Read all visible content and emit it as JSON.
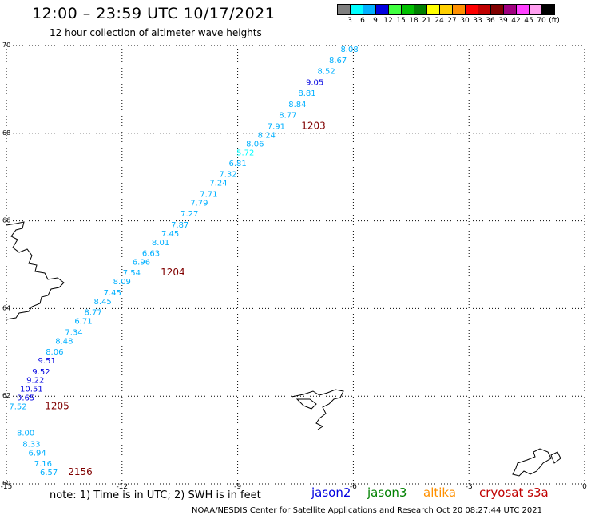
{
  "header": {
    "title": "12:00 – 23:59 UTC 10/17/2021",
    "subtitle": "12 hour collection of altimeter wave heights"
  },
  "colorbar": {
    "colors": [
      "#808080",
      "#00ffff",
      "#00b0ff",
      "#0000e0",
      "#40ff40",
      "#00c000",
      "#008000",
      "#ffff00",
      "#ffd000",
      "#ff9000",
      "#ff0000",
      "#c00000",
      "#800000",
      "#a00080",
      "#ff40ff",
      "#ff9ff0",
      "#000000"
    ],
    "labels": [
      "3",
      "6",
      "9",
      "12",
      "15",
      "18",
      "21",
      "24",
      "27",
      "30",
      "33",
      "36",
      "39",
      "42",
      "45",
      "70",
      "(ft)"
    ]
  },
  "axes": {
    "x_ticks": [
      "-15",
      "-12",
      "-9",
      "-6",
      "-3",
      "0"
    ],
    "y_ticks": [
      "70",
      "68",
      "66",
      "64",
      "62",
      "60"
    ]
  },
  "chart_data": {
    "type": "scatter",
    "x_range": [
      -15,
      0
    ],
    "y_range": [
      60,
      70
    ],
    "grid": true,
    "tracks": [
      {
        "time": "1203",
        "points": [
          {
            "lat": 69.85,
            "lon": -6.1,
            "value": "8.08"
          },
          {
            "lat": 69.6,
            "lon": -6.4,
            "value": "8.67"
          },
          {
            "lat": 69.35,
            "lon": -6.7,
            "value": "8.52"
          },
          {
            "lat": 69.1,
            "lon": -7.0,
            "value": "9.05"
          },
          {
            "lat": 68.85,
            "lon": -7.2,
            "value": "8.81"
          },
          {
            "lat": 68.6,
            "lon": -7.45,
            "value": "8.84"
          },
          {
            "lat": 68.35,
            "lon": -7.7,
            "value": "8.77"
          },
          {
            "lat": 68.1,
            "lon": -8.0,
            "value": "7.91"
          },
          {
            "lat": 67.9,
            "lon": -8.25,
            "value": "8.24"
          },
          {
            "lat": 67.7,
            "lon": -8.55,
            "value": "8.06"
          },
          {
            "lat": 67.5,
            "lon": -8.8,
            "value": "5.72"
          },
          {
            "lat": 67.25,
            "lon": -9.0,
            "value": "6.81"
          },
          {
            "lat": 67.0,
            "lon": -9.25,
            "value": "7.32"
          },
          {
            "lat": 66.8,
            "lon": -9.5,
            "value": "7.24"
          },
          {
            "lat": 66.55,
            "lon": -9.75,
            "value": "7.71"
          },
          {
            "lat": 66.35,
            "lon": -10.0,
            "value": "7.79"
          },
          {
            "lat": 66.1,
            "lon": -10.25,
            "value": "7.27"
          },
          {
            "lat": 65.85,
            "lon": -10.5,
            "value": "7.87"
          },
          {
            "lat": 65.65,
            "lon": -10.75,
            "value": "7.45"
          }
        ]
      },
      {
        "time": "1204",
        "points": [
          {
            "lat": 65.45,
            "lon": -11.0,
            "value": "8.01"
          },
          {
            "lat": 65.2,
            "lon": -11.25,
            "value": "6.63"
          },
          {
            "lat": 65.0,
            "lon": -11.5,
            "value": "6.96"
          },
          {
            "lat": 64.75,
            "lon": -11.75,
            "value": "7.54"
          },
          {
            "lat": 64.55,
            "lon": -12.0,
            "value": "8.09"
          },
          {
            "lat": 64.3,
            "lon": -12.25,
            "value": "7.45"
          },
          {
            "lat": 64.1,
            "lon": -12.5,
            "value": "8.45"
          },
          {
            "lat": 63.85,
            "lon": -12.75,
            "value": "8.77"
          },
          {
            "lat": 63.65,
            "lon": -13.0,
            "value": "6.71"
          },
          {
            "lat": 63.4,
            "lon": -13.25,
            "value": "7.34"
          },
          {
            "lat": 63.2,
            "lon": -13.5,
            "value": "8.48"
          },
          {
            "lat": 62.95,
            "lon": -13.75,
            "value": "8.06"
          }
        ]
      },
      {
        "time": "1205",
        "points": [
          {
            "lat": 62.75,
            "lon": -13.95,
            "value": "9.51"
          },
          {
            "lat": 62.5,
            "lon": -14.1,
            "value": "9.52"
          },
          {
            "lat": 62.3,
            "lon": -14.25,
            "value": "9.22"
          },
          {
            "lat": 62.1,
            "lon": -14.35,
            "value": "10.51"
          },
          {
            "lat": 61.9,
            "lon": -14.5,
            "value": "9.65"
          },
          {
            "lat": 61.7,
            "lon": -14.7,
            "value": "7.52"
          }
        ]
      },
      {
        "time": "2156",
        "points": [
          {
            "lat": 61.1,
            "lon": -14.5,
            "value": "8.00"
          },
          {
            "lat": 60.85,
            "lon": -14.35,
            "value": "8.33"
          },
          {
            "lat": 60.65,
            "lon": -14.2,
            "value": "6.94"
          },
          {
            "lat": 60.4,
            "lon": -14.05,
            "value": "7.16"
          },
          {
            "lat": 60.2,
            "lon": -13.9,
            "value": "6.57"
          }
        ]
      }
    ],
    "time_labels": [
      {
        "text": "1203",
        "lat": 68.1,
        "lon": -7.35
      },
      {
        "text": "1204",
        "lat": 64.75,
        "lon": -11.0
      },
      {
        "text": "1205",
        "lat": 61.7,
        "lon": -14.0
      },
      {
        "text": "2156",
        "lat": 60.2,
        "lon": -13.4
      }
    ]
  },
  "footer": {
    "note": "note:  1) Time is in UTC;  2) SWH is in feet",
    "satellites": [
      {
        "name": "jason2",
        "color": "#0000e0"
      },
      {
        "name": "jason3",
        "color": "#008000"
      },
      {
        "name": "altika",
        "color": "#ff9000"
      },
      {
        "name": "cryosat s3a",
        "color": "#c00000"
      }
    ],
    "credit": "NOAA/NESDIS Center for Satellite Applications and Research     Oct 20 08:27:44 UTC 2021"
  }
}
